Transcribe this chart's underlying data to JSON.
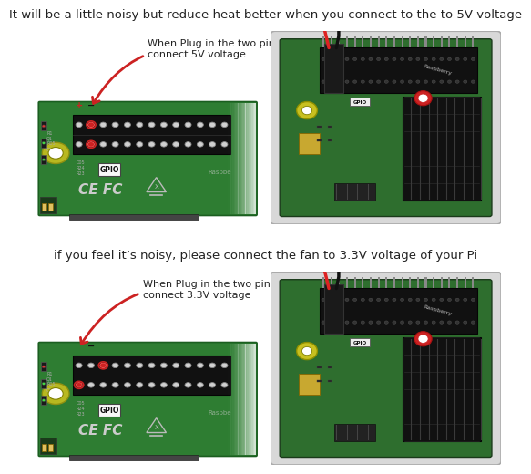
{
  "background_color": "#ffffff",
  "title1": "It will be a little noisy but reduce heat better when you connect to the to 5V voltage",
  "title2": "if you feel it’s noisy, please connect the fan to 3.3V voltage of your Pi",
  "annotation1": "When Plug in the two pins\nconnect 5V voltage",
  "annotation2": "When Plug in the two pins\nconnect 3.3V voltage",
  "title_fontsize": 9.5,
  "annotation_fontsize": 8.0,
  "fig_width": 5.5,
  "fig_height": 5.5,
  "board_green": "#2e7d32",
  "board_green2": "#388e3c",
  "board_dark": "#1b5e20",
  "pin_color": "#e0e0e0",
  "pin_highlight_5v": "#cc2222",
  "pin_highlight_33v": "#cc2222",
  "arrow_color": "#cc2222",
  "plus_color": "#cc2222",
  "minus_color": "#111111",
  "text_color": "#222222",
  "gpio_box_color": "#f5f5f5",
  "wire_red": "#dd2222",
  "wire_black": "#111111",
  "heatsink_color": "#1a1a1a",
  "photo_bg": "#e0e0e0",
  "photo_board": "#2e6e2e"
}
